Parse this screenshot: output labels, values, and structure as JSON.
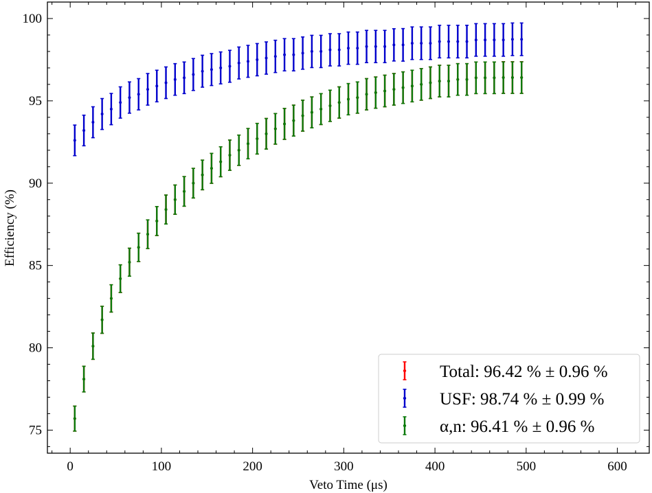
{
  "chart_data": {
    "type": "scatter",
    "xlabel": "Veto Time (μs)",
    "ylabel": "Efficiency (%)",
    "xlim": [
      -25,
      635
    ],
    "ylim": [
      73.6,
      101
    ],
    "xticks": [
      "0",
      "100",
      "200",
      "300",
      "400",
      "500",
      "600"
    ],
    "yticks": [
      "75",
      "80",
      "85",
      "90",
      "95",
      "100"
    ],
    "grid": false,
    "legend_position": "lower-right",
    "x_start": 5,
    "x_step": 10,
    "series": [
      {
        "name": "Total: 96.42 % ± 0.96 %",
        "color": "#ff0000",
        "y": [
          75.7,
          78.1,
          80.1,
          81.7,
          83.0,
          84.2,
          85.2,
          86.1,
          86.9,
          87.7,
          88.4,
          89.0,
          89.5,
          90.0,
          90.5,
          90.9,
          91.3,
          91.7,
          92.0,
          92.4,
          92.7,
          93.0,
          93.3,
          93.6,
          93.8,
          94.1,
          94.3,
          94.5,
          94.7,
          94.9,
          95.1,
          95.2,
          95.4,
          95.5,
          95.6,
          95.7,
          95.8,
          95.9,
          96.0,
          96.1,
          96.2,
          96.2,
          96.3,
          96.3,
          96.4,
          96.4,
          96.4,
          96.42,
          96.42,
          96.42
        ],
        "err": [
          0.76,
          0.78,
          0.8,
          0.82,
          0.83,
          0.84,
          0.85,
          0.86,
          0.87,
          0.88,
          0.88,
          0.89,
          0.9,
          0.9,
          0.9,
          0.91,
          0.91,
          0.92,
          0.92,
          0.92,
          0.93,
          0.93,
          0.93,
          0.94,
          0.94,
          0.94,
          0.94,
          0.94,
          0.95,
          0.95,
          0.95,
          0.95,
          0.95,
          0.95,
          0.96,
          0.96,
          0.96,
          0.96,
          0.96,
          0.96,
          0.96,
          0.96,
          0.96,
          0.96,
          0.96,
          0.96,
          0.96,
          0.96,
          0.96,
          0.96
        ]
      },
      {
        "name": "USF: 98.74 % ± 0.99 %",
        "color": "#0000cc",
        "y": [
          92.6,
          93.2,
          93.7,
          94.2,
          94.5,
          94.9,
          95.2,
          95.4,
          95.7,
          95.9,
          96.1,
          96.3,
          96.4,
          96.6,
          96.8,
          96.9,
          97.0,
          97.1,
          97.3,
          97.4,
          97.5,
          97.6,
          97.7,
          97.8,
          97.8,
          97.9,
          98.0,
          98.0,
          98.1,
          98.1,
          98.2,
          98.2,
          98.3,
          98.3,
          98.3,
          98.4,
          98.4,
          98.5,
          98.5,
          98.5,
          98.6,
          98.6,
          98.6,
          98.6,
          98.7,
          98.7,
          98.7,
          98.7,
          98.74,
          98.74
        ],
        "err": [
          0.93,
          0.93,
          0.94,
          0.94,
          0.95,
          0.95,
          0.95,
          0.95,
          0.96,
          0.96,
          0.96,
          0.96,
          0.96,
          0.97,
          0.97,
          0.97,
          0.97,
          0.97,
          0.97,
          0.97,
          0.98,
          0.98,
          0.98,
          0.98,
          0.98,
          0.98,
          0.98,
          0.98,
          0.98,
          0.98,
          0.98,
          0.98,
          0.98,
          0.98,
          0.98,
          0.98,
          0.99,
          0.99,
          0.99,
          0.99,
          0.99,
          0.99,
          0.99,
          0.99,
          0.99,
          0.99,
          0.99,
          0.99,
          0.99,
          0.99
        ]
      },
      {
        "name": "α,n: 96.41 % ± 0.96 %",
        "color": "#0a7a0a",
        "y": [
          75.7,
          78.1,
          80.1,
          81.7,
          83.0,
          84.2,
          85.2,
          86.1,
          86.9,
          87.7,
          88.4,
          89.0,
          89.5,
          90.0,
          90.5,
          90.9,
          91.3,
          91.7,
          92.0,
          92.4,
          92.7,
          93.0,
          93.3,
          93.6,
          93.8,
          94.1,
          94.3,
          94.5,
          94.7,
          94.9,
          95.1,
          95.2,
          95.4,
          95.5,
          95.6,
          95.7,
          95.8,
          95.9,
          96.0,
          96.1,
          96.2,
          96.2,
          96.3,
          96.3,
          96.4,
          96.4,
          96.4,
          96.41,
          96.41,
          96.41
        ],
        "err": [
          0.76,
          0.78,
          0.8,
          0.82,
          0.83,
          0.84,
          0.85,
          0.86,
          0.87,
          0.88,
          0.88,
          0.89,
          0.9,
          0.9,
          0.9,
          0.91,
          0.91,
          0.92,
          0.92,
          0.92,
          0.93,
          0.93,
          0.93,
          0.94,
          0.94,
          0.94,
          0.94,
          0.94,
          0.95,
          0.95,
          0.95,
          0.95,
          0.95,
          0.95,
          0.96,
          0.96,
          0.96,
          0.96,
          0.96,
          0.96,
          0.96,
          0.96,
          0.96,
          0.96,
          0.96,
          0.96,
          0.96,
          0.96,
          0.96,
          0.96
        ]
      }
    ]
  }
}
